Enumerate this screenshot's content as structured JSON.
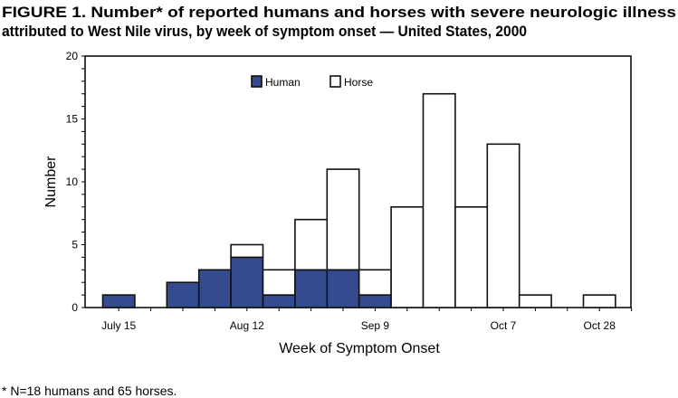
{
  "title_line1": "FIGURE 1. Number* of reported humans and horses with severe neurologic illness",
  "title_line2": "attributed to West Nile virus, by week of symptom onset — United States, 2000",
  "footnote": "* N=18 humans and 65 horses.",
  "chart_data": {
    "type": "bar",
    "stacked": true,
    "xlabel": "Week of Symptom Onset",
    "ylabel": "Number",
    "ylim": [
      0,
      20
    ],
    "yticks": [
      0,
      5,
      10,
      15,
      20
    ],
    "xtick_labels": [
      {
        "week": "July 15",
        "label": "July 15"
      },
      {
        "week": "Aug 12",
        "label": "Aug 12"
      },
      {
        "week": "Sep 9",
        "label": "Sep 9"
      },
      {
        "week": "Oct 7",
        "label": "Oct 7"
      },
      {
        "week": "Oct 28",
        "label": "Oct 28"
      }
    ],
    "categories": [
      "July 15",
      "July 22",
      "July 29",
      "Aug 5",
      "Aug 12",
      "Aug 19",
      "Aug 26",
      "Sep 2",
      "Sep 9",
      "Sep 16",
      "Sep 23",
      "Sep 30",
      "Oct 7",
      "Oct 14",
      "Oct 21",
      "Oct 28"
    ],
    "series": [
      {
        "name": "Human",
        "color": "#344b8f",
        "values": [
          1,
          0,
          2,
          3,
          4,
          1,
          3,
          3,
          1,
          0,
          0,
          0,
          0,
          0,
          0,
          0
        ]
      },
      {
        "name": "Horse",
        "color": "#ffffff",
        "values": [
          0,
          0,
          0,
          0,
          1,
          2,
          4,
          8,
          2,
          8,
          17,
          8,
          13,
          1,
          0,
          1
        ]
      }
    ],
    "legend": "top-center",
    "grid": false
  }
}
